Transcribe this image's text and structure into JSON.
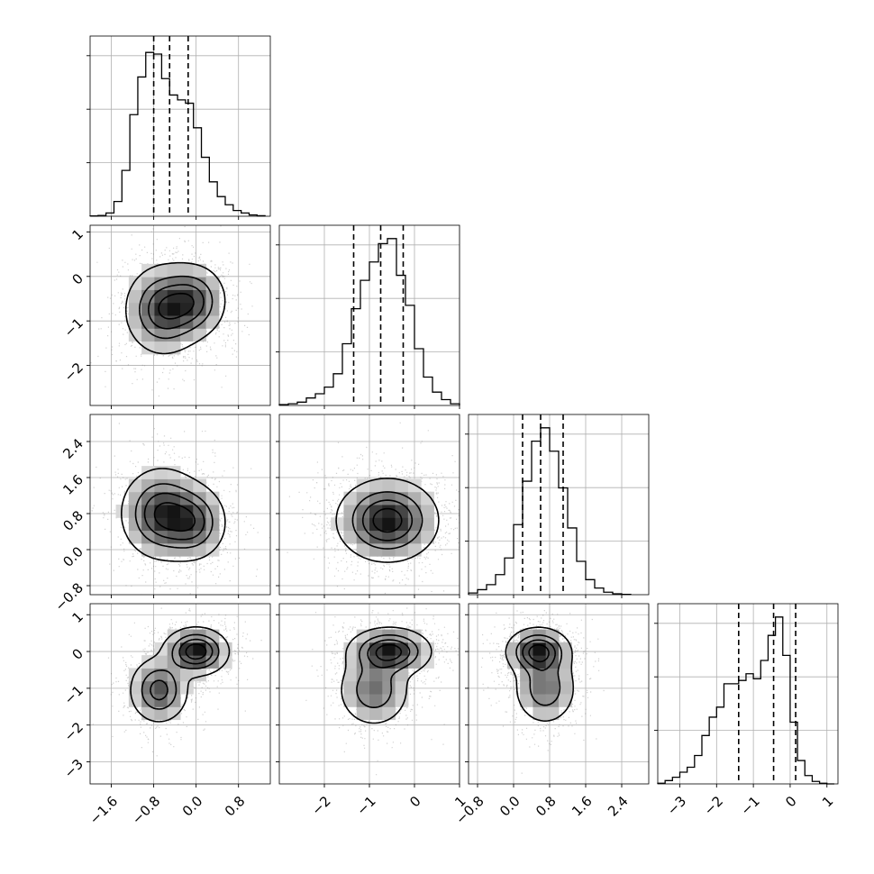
{
  "chart_data": {
    "type": "corner",
    "grid": true,
    "parameters": [
      {
        "range": [
          -2.0,
          1.4
        ],
        "ticks": [
          -1.6,
          -0.8,
          0.0,
          0.8
        ],
        "tick_labels": [
          "−1.6",
          "−0.8",
          "0.0",
          "0.8"
        ],
        "quantiles": [
          -0.8,
          -0.5,
          -0.15
        ],
        "hist_bins": [
          -2.0,
          -1.85,
          -1.7,
          -1.55,
          -1.4,
          -1.25,
          -1.1,
          -0.95,
          -0.8,
          -0.65,
          -0.5,
          -0.35,
          -0.2,
          -0.05,
          0.1,
          0.25,
          0.4,
          0.55,
          0.7,
          0.85,
          1.0,
          1.15,
          1.3
        ],
        "hist_counts": [
          0.002,
          0.005,
          0.02,
          0.09,
          0.28,
          0.62,
          0.85,
          1.0,
          0.99,
          0.84,
          0.74,
          0.71,
          0.69,
          0.54,
          0.36,
          0.21,
          0.12,
          0.07,
          0.035,
          0.02,
          0.008,
          0.003
        ],
        "hist_max": 1.1
      },
      {
        "range": [
          -3.0,
          1.0
        ],
        "ticks": [
          -2,
          -1,
          0,
          1
        ],
        "tick_labels": [
          "−2",
          "−1",
          "0",
          "1"
        ],
        "quantiles": [
          -1.35,
          -0.75,
          -0.25
        ],
        "hist_bins": [
          -3.0,
          -2.8,
          -2.6,
          -2.4,
          -2.2,
          -2.0,
          -1.8,
          -1.6,
          -1.4,
          -1.2,
          -1.0,
          -0.8,
          -0.6,
          -0.4,
          -0.2,
          0.0,
          0.2,
          0.4,
          0.6,
          0.8,
          1.0
        ],
        "hist_counts": [
          0.005,
          0.01,
          0.02,
          0.045,
          0.07,
          0.11,
          0.19,
          0.37,
          0.58,
          0.75,
          0.86,
          0.97,
          1.0,
          0.78,
          0.6,
          0.34,
          0.17,
          0.08,
          0.035,
          0.01
        ],
        "hist_max": 1.08
      },
      {
        "range": [
          -1.0,
          3.0
        ],
        "ticks": [
          -0.8,
          0.0,
          0.8,
          1.6,
          2.4
        ],
        "tick_labels": [
          "−0.8",
          "0.0",
          "0.8",
          "1.6",
          "2.4"
        ],
        "quantiles": [
          0.2,
          0.6,
          1.1
        ],
        "hist_bins": [
          -1.0,
          -0.8,
          -0.6,
          -0.4,
          -0.2,
          0.0,
          0.2,
          0.4,
          0.6,
          0.8,
          1.0,
          1.2,
          1.4,
          1.6,
          1.8,
          2.0,
          2.2,
          2.4,
          2.6
        ],
        "hist_counts": [
          0.01,
          0.03,
          0.06,
          0.12,
          0.22,
          0.42,
          0.68,
          0.92,
          1.0,
          0.86,
          0.64,
          0.4,
          0.2,
          0.09,
          0.04,
          0.015,
          0.005,
          0.002
        ],
        "hist_max": 1.08
      },
      {
        "range": [
          -3.6,
          1.3
        ],
        "ticks": [
          -3,
          -2,
          -1,
          0,
          1
        ],
        "tick_labels": [
          "−3",
          "−2",
          "−1",
          "0",
          "1"
        ],
        "quantiles": [
          -1.4,
          -0.45,
          0.15
        ],
        "hist_bins": [
          -3.6,
          -3.4,
          -3.2,
          -3.0,
          -2.8,
          -2.6,
          -2.4,
          -2.2,
          -2.0,
          -1.8,
          -1.6,
          -1.4,
          -1.2,
          -1.0,
          -0.8,
          -0.6,
          -0.4,
          -0.2,
          0.0,
          0.2,
          0.4,
          0.6,
          0.8,
          1.0,
          1.2
        ],
        "hist_counts": [
          0.004,
          0.02,
          0.04,
          0.07,
          0.1,
          0.17,
          0.29,
          0.4,
          0.46,
          0.6,
          0.6,
          0.62,
          0.66,
          0.63,
          0.74,
          0.89,
          1.0,
          0.77,
          0.37,
          0.14,
          0.05,
          0.015,
          0.004,
          0.0
        ],
        "hist_max": 1.08
      }
    ],
    "pairs": [
      {
        "row": 1,
        "col": 0,
        "ylim": [
          -2.9,
          1.15
        ],
        "yticks": [
          -2,
          -1,
          0,
          1
        ],
        "ytick_labels": [
          "−2",
          "−1",
          "0",
          "1"
        ],
        "blobs": [
          {
            "cx": -0.62,
            "cy": -0.75,
            "sx": 0.36,
            "sy": 0.5,
            "weight": 1.0
          },
          {
            "cx": -0.05,
            "cy": -0.55,
            "sx": 0.32,
            "sy": 0.42,
            "weight": 0.8
          }
        ]
      },
      {
        "row": 2,
        "col": 0,
        "ylim": [
          -1.0,
          3.0
        ],
        "yticks": [
          -0.8,
          0.0,
          0.8,
          1.6,
          2.4
        ],
        "ytick_labels": [
          "−0.8",
          "0.0",
          "0.8",
          "1.6",
          "2.4"
        ],
        "blobs": [
          {
            "cx": -0.65,
            "cy": 0.8,
            "sx": 0.38,
            "sy": 0.5,
            "weight": 1.0
          },
          {
            "cx": -0.05,
            "cy": 0.6,
            "sx": 0.32,
            "sy": 0.42,
            "weight": 0.75
          }
        ]
      },
      {
        "row": 2,
        "col": 1,
        "ylim": [
          -1.0,
          3.0
        ],
        "yticks": [
          -0.8,
          0.0,
          0.8,
          1.6,
          2.4
        ],
        "ytick_labels": [
          "−0.8",
          "0.0",
          "0.8",
          "1.6",
          "2.4"
        ],
        "blobs": [
          {
            "cx": -0.6,
            "cy": 0.65,
            "sx": 0.55,
            "sy": 0.45,
            "weight": 1.0
          }
        ]
      },
      {
        "row": 3,
        "col": 0,
        "ylim": [
          -3.6,
          1.3
        ],
        "yticks": [
          -3,
          -2,
          -1,
          0,
          1
        ],
        "ytick_labels": [
          "−3",
          "−2",
          "−1",
          "0",
          "1"
        ],
        "blobs": [
          {
            "cx": 0.0,
            "cy": 0.0,
            "sx": 0.3,
            "sy": 0.32,
            "weight": 1.0
          },
          {
            "cx": -0.7,
            "cy": -1.05,
            "sx": 0.28,
            "sy": 0.45,
            "weight": 0.7
          }
        ]
      },
      {
        "row": 3,
        "col": 1,
        "ylim": [
          -3.6,
          1.3
        ],
        "yticks": [
          -3,
          -2,
          -1,
          0,
          1
        ],
        "ytick_labels": [
          "−3",
          "−2",
          "−1",
          "0",
          "1"
        ],
        "blobs": [
          {
            "cx": -0.55,
            "cy": 0.0,
            "sx": 0.45,
            "sy": 0.32,
            "weight": 1.0
          },
          {
            "cx": -0.9,
            "cy": -1.05,
            "sx": 0.4,
            "sy": 0.5,
            "weight": 0.6
          }
        ]
      },
      {
        "row": 3,
        "col": 2,
        "ylim": [
          -3.6,
          1.3
        ],
        "yticks": [
          -3,
          -2,
          -1,
          0,
          1
        ],
        "ytick_labels": [
          "−3",
          "−2",
          "−1",
          "0",
          "1"
        ],
        "blobs": [
          {
            "cx": 0.55,
            "cy": 0.0,
            "sx": 0.35,
            "sy": 0.32,
            "weight": 1.0
          },
          {
            "cx": 0.7,
            "cy": -1.0,
            "sx": 0.35,
            "sy": 0.5,
            "weight": 0.6
          }
        ]
      }
    ]
  }
}
